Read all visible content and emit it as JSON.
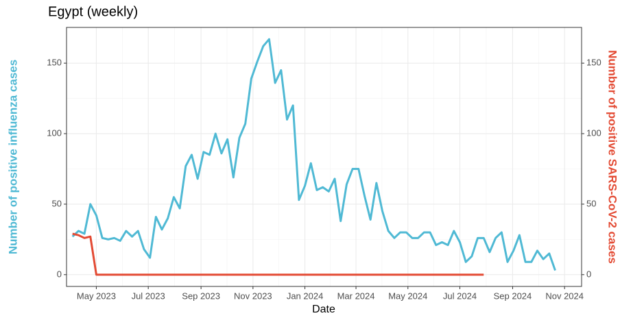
{
  "chart_data": {
    "type": "line",
    "title": "Egypt (weekly)",
    "x_label": "Date",
    "y_label": "Number of positive influenza cases",
    "y2_label": "Number of positive SARS-CoV-2 cases",
    "x": [
      "2023-04-03",
      "2023-04-10",
      "2023-04-17",
      "2023-04-24",
      "2023-05-01",
      "2023-05-08",
      "2023-05-15",
      "2023-05-22",
      "2023-05-29",
      "2023-06-05",
      "2023-06-12",
      "2023-06-19",
      "2023-06-26",
      "2023-07-03",
      "2023-07-10",
      "2023-07-17",
      "2023-07-24",
      "2023-07-31",
      "2023-08-07",
      "2023-08-14",
      "2023-08-21",
      "2023-08-28",
      "2023-09-04",
      "2023-09-11",
      "2023-09-18",
      "2023-09-25",
      "2023-10-02",
      "2023-10-09",
      "2023-10-16",
      "2023-10-23",
      "2023-10-30",
      "2023-11-06",
      "2023-11-13",
      "2023-11-20",
      "2023-11-27",
      "2023-12-04",
      "2023-12-11",
      "2023-12-18",
      "2023-12-25",
      "2024-01-01",
      "2024-01-08",
      "2024-01-15",
      "2024-01-22",
      "2024-01-29",
      "2024-02-05",
      "2024-02-12",
      "2024-02-19",
      "2024-02-26",
      "2024-03-04",
      "2024-03-11",
      "2024-03-18",
      "2024-03-25",
      "2024-04-01",
      "2024-04-08",
      "2024-04-15",
      "2024-04-22",
      "2024-04-29",
      "2024-05-06",
      "2024-05-13",
      "2024-05-20",
      "2024-05-27",
      "2024-06-03",
      "2024-06-10",
      "2024-06-17",
      "2024-06-24",
      "2024-07-01",
      "2024-07-08",
      "2024-07-15",
      "2024-07-22",
      "2024-07-29",
      "2024-08-05",
      "2024-08-12",
      "2024-08-19",
      "2024-08-26",
      "2024-09-02",
      "2024-09-09",
      "2024-09-16",
      "2024-09-23",
      "2024-09-30",
      "2024-10-07",
      "2024-10-14",
      "2024-10-21"
    ],
    "series": [
      {
        "color": "#4fb9d4",
        "values": [
          27,
          31,
          29,
          50,
          42,
          26,
          25,
          26,
          24,
          31,
          27,
          31,
          18,
          12,
          41,
          32,
          40,
          55,
          47,
          77,
          85,
          68,
          87,
          85,
          100,
          86,
          96,
          69,
          97,
          107,
          139,
          151,
          162,
          167,
          136,
          145,
          110,
          120,
          53,
          63,
          79,
          60,
          62,
          59,
          68,
          38,
          64,
          75,
          75,
          56,
          39,
          65,
          45,
          31,
          26,
          30,
          30,
          26,
          26,
          30,
          30,
          21,
          23,
          21,
          31,
          23,
          9,
          13,
          26,
          26,
          16,
          26,
          30,
          9,
          17,
          28,
          9,
          9,
          17,
          11,
          15,
          3
        ]
      },
      {
        "color": "#e34a33",
        "axis": "y2",
        "values": [
          29,
          28,
          26,
          27,
          0,
          0,
          0,
          0,
          0,
          0,
          0,
          0,
          0,
          0,
          0,
          0,
          0,
          0,
          0,
          0,
          0,
          0,
          0,
          0,
          0,
          0,
          0,
          0,
          0,
          0,
          0,
          0,
          0,
          0,
          0,
          0,
          0,
          0,
          0,
          0,
          0,
          0,
          0,
          0,
          0,
          0,
          0,
          0,
          0,
          0,
          0,
          0,
          0,
          0,
          0,
          0,
          0,
          0,
          0,
          0,
          0,
          0,
          0,
          0,
          0,
          0,
          0,
          0,
          0,
          0,
          null,
          null,
          null,
          null,
          null,
          null,
          null,
          null,
          null,
          null,
          null,
          null
        ]
      }
    ],
    "xlim": [
      "2023-03-27",
      "2024-11-21"
    ],
    "xticks": [
      {
        "value": "2023-05-01",
        "label": "May 2023"
      },
      {
        "value": "2023-07-01",
        "label": "Jul 2023"
      },
      {
        "value": "2023-09-01",
        "label": "Sep 2023"
      },
      {
        "value": "2023-11-01",
        "label": "Nov 2023"
      },
      {
        "value": "2024-01-01",
        "label": "Jan 2024"
      },
      {
        "value": "2024-03-01",
        "label": "Mar 2024"
      },
      {
        "value": "2024-05-01",
        "label": "May 2024"
      },
      {
        "value": "2024-07-01",
        "label": "Jul 2024"
      },
      {
        "value": "2024-09-01",
        "label": "Sep 2024"
      },
      {
        "value": "2024-11-01",
        "label": "Nov 2024"
      }
    ],
    "ylim": [
      -8.35,
      175.35
    ],
    "yticks": [
      0,
      50,
      100,
      150
    ],
    "y2lim": [
      -8.35,
      175.35
    ],
    "y2ticks": [
      0,
      50,
      100,
      150
    ],
    "grid": true
  }
}
